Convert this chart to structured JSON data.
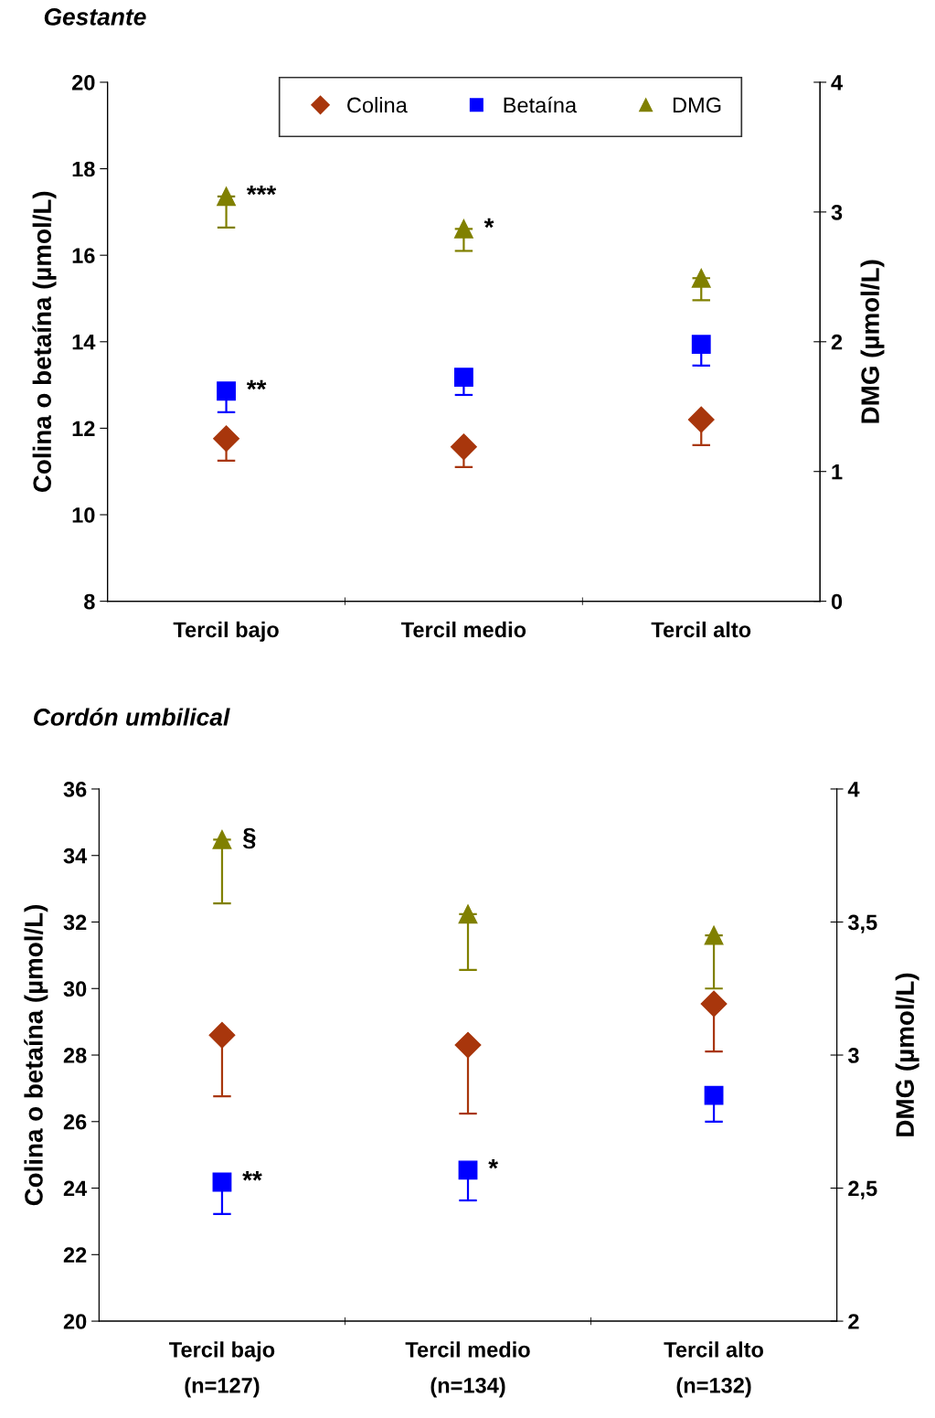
{
  "chart_data": [
    {
      "type": "scatter",
      "title": "Gestante",
      "categories": [
        "Tercil bajo",
        "Tercil medio",
        "Tercil alto"
      ],
      "ylabel": "Colina o betaína (µmol/L)",
      "y2label": "DMG (µmol/L)",
      "ylim": [
        8,
        20
      ],
      "yticks": [
        8,
        10,
        12,
        14,
        16,
        18,
        20
      ],
      "y2lim": [
        0,
        4
      ],
      "y2ticks": [
        0,
        1,
        2,
        3,
        4
      ],
      "grid": false,
      "legend": "top right",
      "series": [
        {
          "name": "Colina",
          "color": "#a8360c",
          "marker": "diamond",
          "values": [
            11.76,
            11.57,
            12.2
          ],
          "errors": [
            [
              11.25,
              11.76
            ],
            [
              11.1,
              11.57
            ],
            [
              11.61,
              12.2
            ]
          ]
        },
        {
          "name": "Betaína",
          "color": "#0000ff",
          "marker": "square",
          "values": [
            12.86,
            13.18,
            13.94
          ],
          "errors": [
            [
              12.37,
              12.86
            ],
            [
              12.77,
              13.18
            ],
            [
              13.45,
              13.94
            ]
          ]
        },
        {
          "name": "DMG",
          "color": "#808000",
          "marker": "triangle",
          "axis": "y2",
          "values": [
            3.12,
            2.87,
            2.49
          ],
          "errors": [
            [
              2.88,
              3.12
            ],
            [
              2.7,
              2.87
            ],
            [
              2.32,
              2.49
            ]
          ]
        }
      ],
      "annotations": [
        {
          "text": "***",
          "x": "Tercil bajo",
          "y": 17.36
        },
        {
          "text": "**",
          "x": "Tercil bajo",
          "y": 12.86
        },
        {
          "text": "*",
          "x": "Tercil medio",
          "y": 16.6
        }
      ]
    },
    {
      "type": "scatter",
      "title": "Cordón umbilical",
      "categories": [
        "Tercil bajo\n(n=127)",
        "Tercil medio\n(n=134)",
        "Tercil alto\n(n=132)"
      ],
      "ylabel": "Colina o betaína (µmol/L)",
      "y2label": "DMG (µmol/L)",
      "ylim": [
        20,
        36
      ],
      "yticks": [
        20,
        22,
        24,
        26,
        28,
        30,
        32,
        34,
        36
      ],
      "y2lim": [
        2,
        4
      ],
      "y2ticks": [
        2,
        {
          "value": 2.5,
          "label": "2,5"
        },
        3,
        {
          "value": 3.5,
          "label": "3,5"
        },
        4
      ],
      "grid": false,
      "legend": false,
      "series": [
        {
          "color": "#a8360c",
          "marker": "diamond",
          "values": [
            28.6,
            28.3,
            29.54
          ],
          "errors": [
            [
              26.76,
              28.6
            ],
            [
              26.24,
              28.3
            ],
            [
              28.11,
              29.54
            ]
          ]
        },
        {
          "color": "#0000ff",
          "marker": "square",
          "values": [
            24.18,
            24.54,
            26.79
          ],
          "errors": [
            [
              23.22,
              24.18
            ],
            [
              23.63,
              24.54
            ],
            [
              26.0,
              26.79
            ]
          ]
        },
        {
          "color": "#808000",
          "marker": "triangle",
          "axis": "y2",
          "values": [
            3.81,
            3.53,
            3.45
          ],
          "errors": [
            [
              3.57,
              3.81
            ],
            [
              3.32,
              3.53
            ],
            [
              3.25,
              3.45
            ]
          ]
        }
      ],
      "annotations": [
        {
          "text": "§",
          "x": "Tercil bajo\n(n=127)",
          "y": 34.49
        },
        {
          "text": "**",
          "x": "Tercil bajo\n(n=127)",
          "y": 24.18
        },
        {
          "text": "*",
          "x": "Tercil medio\n(n=134)",
          "y": 24.54
        }
      ]
    }
  ]
}
